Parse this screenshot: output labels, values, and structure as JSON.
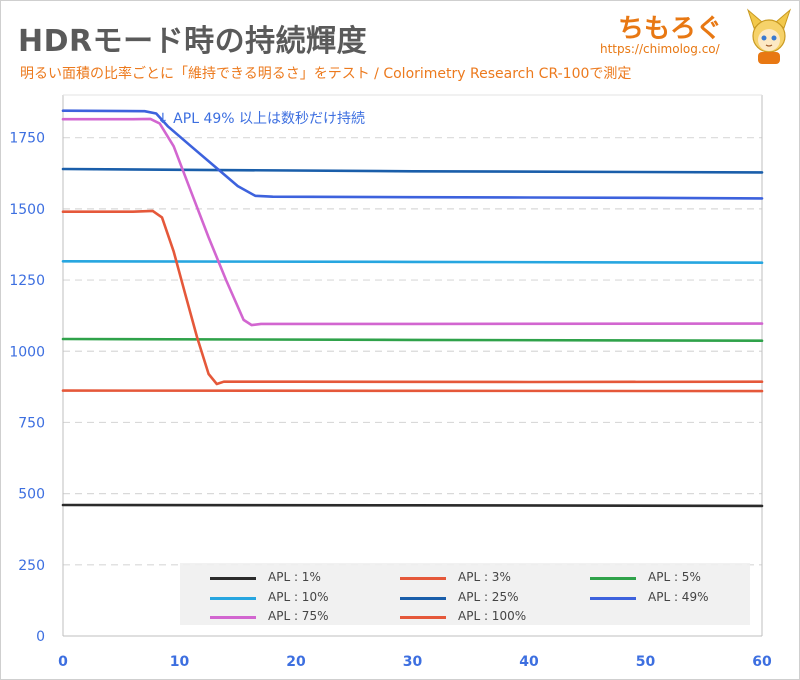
{
  "title": "HDRモード時の持続輝度",
  "subtitle": "明るい面積の比率ごとに「維持できる明るさ」をテスト / Colorimetry Research CR-100で測定",
  "logo": {
    "text": "ちもろぐ",
    "url": "https://chimolog.co/"
  },
  "colors": {
    "title": "#5a5a5a",
    "subtitle": "#ec7a1e",
    "axis_ticks": "#3d6fe0",
    "grid": "#d9d9d9",
    "legend_bg": "#f0f0f0"
  },
  "chart_data": {
    "type": "line",
    "title": "",
    "xlabel": "",
    "ylabel": "",
    "xlim": [
      0,
      60
    ],
    "ylim": [
      0,
      1900
    ],
    "xticks": [
      0,
      10,
      20,
      30,
      40,
      50,
      60
    ],
    "yticks": [
      0,
      250,
      500,
      750,
      1000,
      1250,
      1500,
      1750
    ],
    "grid": "horizontal-dashed",
    "legend_placement": "bottom-right",
    "annotation": {
      "text": "↓ APL 49% 以上は数秒だけ持続",
      "x": 8,
      "y": 1860
    },
    "series": [
      {
        "name": "APL : 1%",
        "color": "#2b2b2b",
        "points": [
          [
            0,
            460
          ],
          [
            30,
            459
          ],
          [
            60,
            457
          ]
        ]
      },
      {
        "name": "APL : 3%",
        "color": "#e5583a",
        "points": [
          [
            0,
            862
          ],
          [
            30,
            861
          ],
          [
            60,
            860
          ]
        ]
      },
      {
        "name": "APL : 5%",
        "color": "#2fa24a",
        "points": [
          [
            0,
            1043
          ],
          [
            30,
            1040
          ],
          [
            60,
            1037
          ]
        ]
      },
      {
        "name": "APL : 10%",
        "color": "#27a6e0",
        "points": [
          [
            0,
            1316
          ],
          [
            30,
            1314
          ],
          [
            60,
            1311
          ]
        ]
      },
      {
        "name": "APL : 25%",
        "color": "#1a5eaa",
        "points": [
          [
            0,
            1640
          ],
          [
            30,
            1632
          ],
          [
            60,
            1628
          ]
        ]
      },
      {
        "name": "APL : 49%",
        "color": "#3d62dd",
        "points": [
          [
            0,
            1845
          ],
          [
            7,
            1843
          ],
          [
            8,
            1835
          ],
          [
            9,
            1790
          ],
          [
            11,
            1720
          ],
          [
            13,
            1650
          ],
          [
            15,
            1580
          ],
          [
            16.5,
            1546
          ],
          [
            18,
            1543
          ],
          [
            30,
            1541
          ],
          [
            40,
            1540
          ],
          [
            50,
            1539
          ],
          [
            60,
            1537
          ]
        ]
      },
      {
        "name": "APL : 75%",
        "color": "#d266d0",
        "points": [
          [
            0,
            1815
          ],
          [
            6,
            1815
          ],
          [
            7.5,
            1816
          ],
          [
            8.3,
            1800
          ],
          [
            9.5,
            1720
          ],
          [
            11,
            1560
          ],
          [
            12.5,
            1400
          ],
          [
            14,
            1250
          ],
          [
            15.5,
            1110
          ],
          [
            16.2,
            1092
          ],
          [
            17,
            1096
          ],
          [
            30,
            1096
          ],
          [
            60,
            1097
          ]
        ]
      },
      {
        "name": "APL : 100%",
        "color": "#e5583a",
        "points": [
          [
            0,
            1490
          ],
          [
            6,
            1490
          ],
          [
            7.7,
            1493
          ],
          [
            8.5,
            1470
          ],
          [
            9.5,
            1350
          ],
          [
            10.5,
            1200
          ],
          [
            11.5,
            1050
          ],
          [
            12.5,
            920
          ],
          [
            13.2,
            885
          ],
          [
            13.8,
            893
          ],
          [
            20,
            893
          ],
          [
            40,
            892
          ],
          [
            60,
            893
          ]
        ]
      }
    ]
  }
}
